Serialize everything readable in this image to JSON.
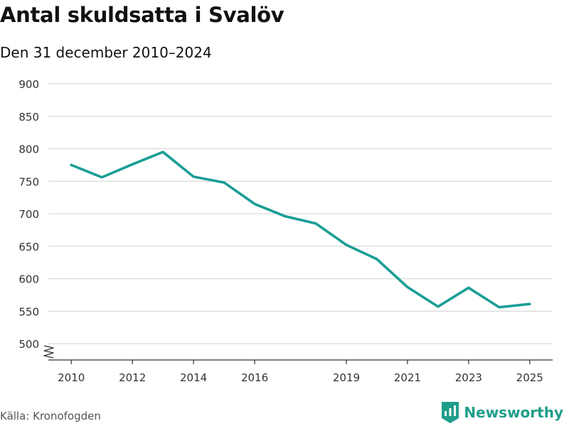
{
  "title": "Antal skuldsatta i Svalöv",
  "subtitle": "Den 31 december 2010–2024",
  "source": "Källa: Kronofogden",
  "brand": {
    "name": "Newsworthy",
    "icon": "newsworthy-logo-icon",
    "color": "#1f9e8a"
  },
  "colors": {
    "line": "#1a9e95",
    "grid": "#d9d9d9",
    "axis": "#333333",
    "tick_text": "#333333"
  },
  "chart_data": {
    "type": "line",
    "title": "Antal skuldsatta i Svalöv",
    "subtitle": "Den 31 december 2010–2024",
    "xlabel": "",
    "ylabel": "",
    "x": [
      2010,
      2011,
      2012,
      2013,
      2014,
      2015,
      2016,
      2017,
      2018,
      2019,
      2020,
      2021,
      2022,
      2023,
      2024,
      2025
    ],
    "series": [
      {
        "name": "Antal skuldsatta",
        "values": [
          775,
          756,
          776,
          795,
          757,
          748,
          715,
          696,
          685,
          652,
          630,
          587,
          557,
          586,
          556,
          561
        ]
      }
    ],
    "xlim": [
      2009.25,
      2025.75
    ],
    "x_ticks": [
      2010,
      2012,
      2014,
      2016,
      2019,
      2021,
      2023,
      2025
    ],
    "ylim": [
      500,
      900
    ],
    "y_ticks": [
      500,
      550,
      600,
      650,
      700,
      750,
      800,
      850,
      900
    ],
    "grid": true,
    "axis_break": true,
    "legend": "none"
  }
}
